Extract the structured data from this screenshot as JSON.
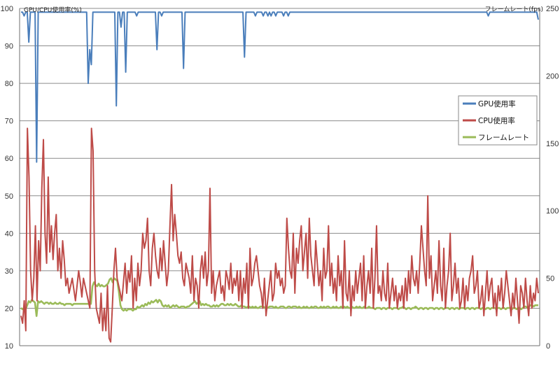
{
  "chart_data": {
    "type": "line",
    "title": "",
    "y_left": {
      "label": "GPU/CPU使用率(%)",
      "min": 10,
      "max": 100,
      "ticks": [
        10,
        20,
        30,
        40,
        50,
        60,
        70,
        80,
        90,
        100
      ]
    },
    "y_right": {
      "label": "フレームレート(fps)",
      "min": 0,
      "max": 250,
      "ticks": [
        0,
        50,
        100,
        150,
        200,
        250
      ]
    },
    "grid": true,
    "legend": {
      "placement": "right"
    },
    "series": [
      {
        "name": "GPU使用率",
        "axis": "left",
        "color": "#4a7ebb",
        "values": [
          99,
          99,
          98,
          99,
          99,
          91,
          99,
          99,
          99,
          99,
          59,
          99,
          99,
          99,
          99,
          99,
          99,
          99,
          99,
          99,
          99,
          99,
          99,
          99,
          99,
          99,
          99,
          99,
          99,
          99,
          99,
          99,
          99,
          99,
          99,
          99,
          99,
          99,
          99,
          99,
          99,
          99,
          99,
          80,
          89,
          85,
          99,
          99,
          99,
          99,
          99,
          99,
          99,
          99,
          99,
          99,
          99,
          99,
          99,
          99,
          99,
          74,
          99,
          99,
          95,
          99,
          99,
          83,
          99,
          99,
          99,
          99,
          99,
          99,
          98,
          99,
          99,
          99,
          99,
          99,
          99,
          99,
          99,
          99,
          99,
          99,
          99,
          89,
          99,
          99,
          98,
          99,
          99,
          99,
          99,
          99,
          99,
          99,
          99,
          99,
          99,
          99,
          99,
          99,
          84,
          99,
          99,
          99,
          99,
          99,
          99,
          99,
          99,
          99,
          99,
          99,
          99,
          99,
          99,
          99,
          99,
          99,
          99,
          99,
          99,
          99,
          99,
          99,
          99,
          99,
          99,
          99,
          99,
          99,
          99,
          99,
          99,
          99,
          99,
          99,
          99,
          99,
          99,
          87,
          99,
          99,
          99,
          99,
          99,
          99,
          98,
          99,
          99,
          99,
          99,
          98,
          99,
          99,
          98,
          99,
          98,
          99,
          99,
          98,
          99,
          99,
          99,
          99,
          98,
          99,
          99,
          98,
          99,
          99,
          99,
          99,
          99,
          99,
          99,
          99,
          99,
          99,
          99,
          99,
          99,
          99,
          99,
          99,
          99,
          99,
          99,
          99,
          99,
          99,
          99,
          99,
          99,
          99,
          99,
          99,
          99,
          99,
          99,
          99,
          99,
          99,
          99,
          99,
          99,
          99,
          99,
          99,
          99,
          99,
          99,
          99,
          99,
          99,
          99,
          99,
          99,
          99,
          99,
          99,
          99,
          99,
          99,
          99,
          99,
          99,
          99,
          99,
          99,
          99,
          99,
          99,
          99,
          99,
          99,
          99,
          99,
          99,
          99,
          99,
          99,
          99,
          99,
          99,
          99,
          99,
          99,
          99,
          99,
          99,
          99,
          99,
          99,
          99,
          99,
          99,
          99,
          99,
          99,
          99,
          99,
          99,
          99,
          99,
          99,
          99,
          99,
          99,
          99,
          99,
          99,
          99,
          99,
          99,
          99,
          99,
          99,
          99,
          99,
          99,
          99,
          99,
          99,
          99,
          99,
          99,
          99,
          99,
          99,
          99,
          99,
          99,
          99,
          99,
          99,
          98,
          99,
          99,
          99,
          99,
          99,
          99,
          99,
          99,
          99,
          99,
          99,
          99,
          99,
          99,
          99,
          99,
          99,
          99,
          99,
          99,
          99,
          99,
          99,
          99,
          99,
          99,
          99,
          99,
          99,
          99,
          99,
          97
        ]
      },
      {
        "name": "CPU使用率",
        "axis": "left",
        "color": "#be4b48",
        "values": [
          18,
          16,
          22,
          14,
          68,
          55,
          30,
          22,
          28,
          42,
          22,
          38,
          30,
          52,
          65,
          40,
          32,
          55,
          35,
          42,
          33,
          40,
          45,
          30,
          36,
          28,
          38,
          33,
          26,
          28,
          24,
          26,
          28,
          25,
          22,
          26,
          30,
          27,
          23,
          28,
          26,
          24,
          22,
          20,
          68,
          62,
          30,
          20,
          18,
          16,
          24,
          14,
          20,
          14,
          26,
          12,
          11,
          20,
          30,
          36,
          28,
          26,
          24,
          22,
          27,
          32,
          24,
          30,
          27,
          34,
          20,
          28,
          22,
          32,
          26,
          30,
          40,
          36,
          38,
          44,
          30,
          26,
          36,
          40,
          34,
          30,
          28,
          36,
          30,
          38,
          32,
          26,
          30,
          42,
          53,
          38,
          45,
          40,
          34,
          32,
          35,
          28,
          26,
          32,
          30,
          28,
          24,
          34,
          22,
          28,
          26,
          20,
          30,
          34,
          28,
          35,
          26,
          30,
          52,
          24,
          30,
          22,
          26,
          28,
          30,
          24,
          26,
          22,
          30,
          28,
          25,
          32,
          24,
          28,
          26,
          30,
          22,
          30,
          20,
          28,
          24,
          32,
          20,
          36,
          26,
          28,
          32,
          34,
          30,
          26,
          24,
          20,
          28,
          18,
          22,
          26,
          30,
          22,
          24,
          32,
          28,
          30,
          26,
          28,
          24,
          26,
          44,
          36,
          30,
          28,
          40,
          24,
          36,
          32,
          38,
          42,
          30,
          35,
          40,
          28,
          44,
          34,
          30,
          26,
          38,
          32,
          26,
          30,
          22,
          36,
          28,
          30,
          42,
          26,
          32,
          24,
          28,
          22,
          34,
          26,
          30,
          20,
          38,
          24,
          22,
          30,
          18,
          26,
          22,
          30,
          24,
          28,
          32,
          22,
          34,
          20,
          26,
          30,
          24,
          36,
          20,
          28,
          42,
          24,
          26,
          22,
          30,
          24,
          22,
          32,
          20,
          24,
          28,
          22,
          26,
          20,
          24,
          22,
          26,
          20,
          28,
          22,
          30,
          24,
          34,
          28,
          26,
          30,
          24,
          32,
          42,
          36,
          30,
          26,
          50,
          28,
          34,
          22,
          26,
          30,
          24,
          38,
          26,
          22,
          36,
          20,
          26,
          30,
          40,
          22,
          26,
          32,
          24,
          28,
          20,
          22,
          28,
          20,
          26,
          22,
          28,
          30,
          34,
          24,
          26,
          30,
          20,
          22,
          26,
          18,
          24,
          30,
          22,
          26,
          28,
          20,
          24,
          18,
          26,
          22,
          28,
          20,
          24,
          30,
          26,
          22,
          18,
          24,
          20,
          28,
          22,
          16,
          26,
          24,
          20,
          28,
          22,
          18,
          26,
          20,
          24,
          22,
          28,
          24
        ]
      },
      {
        "name": "フレームレート",
        "axis": "right",
        "color": "#9bbb59",
        "values": [
          28,
          27,
          28,
          27,
          30,
          33,
          32,
          34,
          33,
          32,
          22,
          33,
          32,
          33,
          32,
          31,
          32,
          32,
          31,
          32,
          31,
          31,
          32,
          31,
          31,
          32,
          31,
          31,
          30,
          31,
          31,
          31,
          31,
          30,
          31,
          31,
          31,
          31,
          31,
          31,
          31,
          31,
          31,
          31,
          31,
          31,
          44,
          47,
          45,
          44,
          46,
          44,
          45,
          44,
          44,
          45,
          46,
          49,
          50,
          47,
          50,
          49,
          48,
          40,
          30,
          27,
          26,
          27,
          26,
          27,
          27,
          27,
          26,
          27,
          27,
          29,
          28,
          29,
          30,
          29,
          31,
          30,
          32,
          31,
          33,
          32,
          33,
          34,
          32,
          34,
          33,
          30,
          29,
          30,
          29,
          30,
          28,
          29,
          30,
          29,
          30,
          29,
          28,
          29,
          29,
          29,
          28,
          29,
          29,
          30,
          31,
          32,
          33,
          31,
          32,
          33,
          30,
          31,
          30,
          31,
          30,
          30,
          29,
          29,
          30,
          29,
          30,
          29,
          30,
          31,
          31,
          30,
          30,
          31,
          30,
          31,
          30,
          30,
          31,
          30,
          29,
          29,
          30,
          29,
          29,
          28,
          29,
          29,
          28,
          29,
          28,
          29,
          28,
          28,
          29,
          29,
          29,
          28,
          29,
          28,
          29,
          29,
          29,
          28,
          29,
          28,
          28,
          29,
          29,
          29,
          28,
          28,
          29,
          29,
          28,
          29,
          29,
          29,
          28,
          29,
          28,
          28,
          29,
          28,
          29,
          28,
          28,
          29,
          28,
          29,
          29,
          28,
          28,
          29,
          28,
          29,
          28,
          29,
          29,
          28,
          28,
          29,
          28,
          29,
          28,
          28,
          29,
          28,
          29,
          28,
          29,
          28,
          28,
          29,
          28,
          28,
          29,
          28,
          29,
          28,
          28,
          29,
          28,
          28,
          29,
          28,
          28,
          28,
          27,
          28,
          28,
          28,
          27,
          28,
          28,
          27,
          28,
          28,
          28,
          27,
          28,
          28,
          28,
          27,
          28,
          28,
          29,
          28,
          27,
          28,
          28,
          27,
          28,
          28,
          29,
          28,
          27,
          28,
          28,
          27,
          28,
          28,
          27,
          28,
          28,
          28,
          27,
          28,
          28,
          27,
          28,
          28,
          27,
          28,
          28,
          28,
          27,
          28,
          28,
          27,
          28,
          28,
          27,
          28,
          28,
          28,
          27,
          28,
          28,
          27,
          28,
          28,
          27,
          28,
          28,
          28,
          27,
          28,
          28,
          27,
          28,
          28,
          27,
          28,
          28,
          28,
          27,
          28,
          28,
          27,
          28,
          28,
          27,
          28,
          28,
          28,
          27,
          28,
          28,
          27,
          28,
          28,
          27,
          28,
          29,
          29,
          28,
          29,
          30,
          30,
          29,
          30,
          30,
          30
        ]
      }
    ]
  }
}
